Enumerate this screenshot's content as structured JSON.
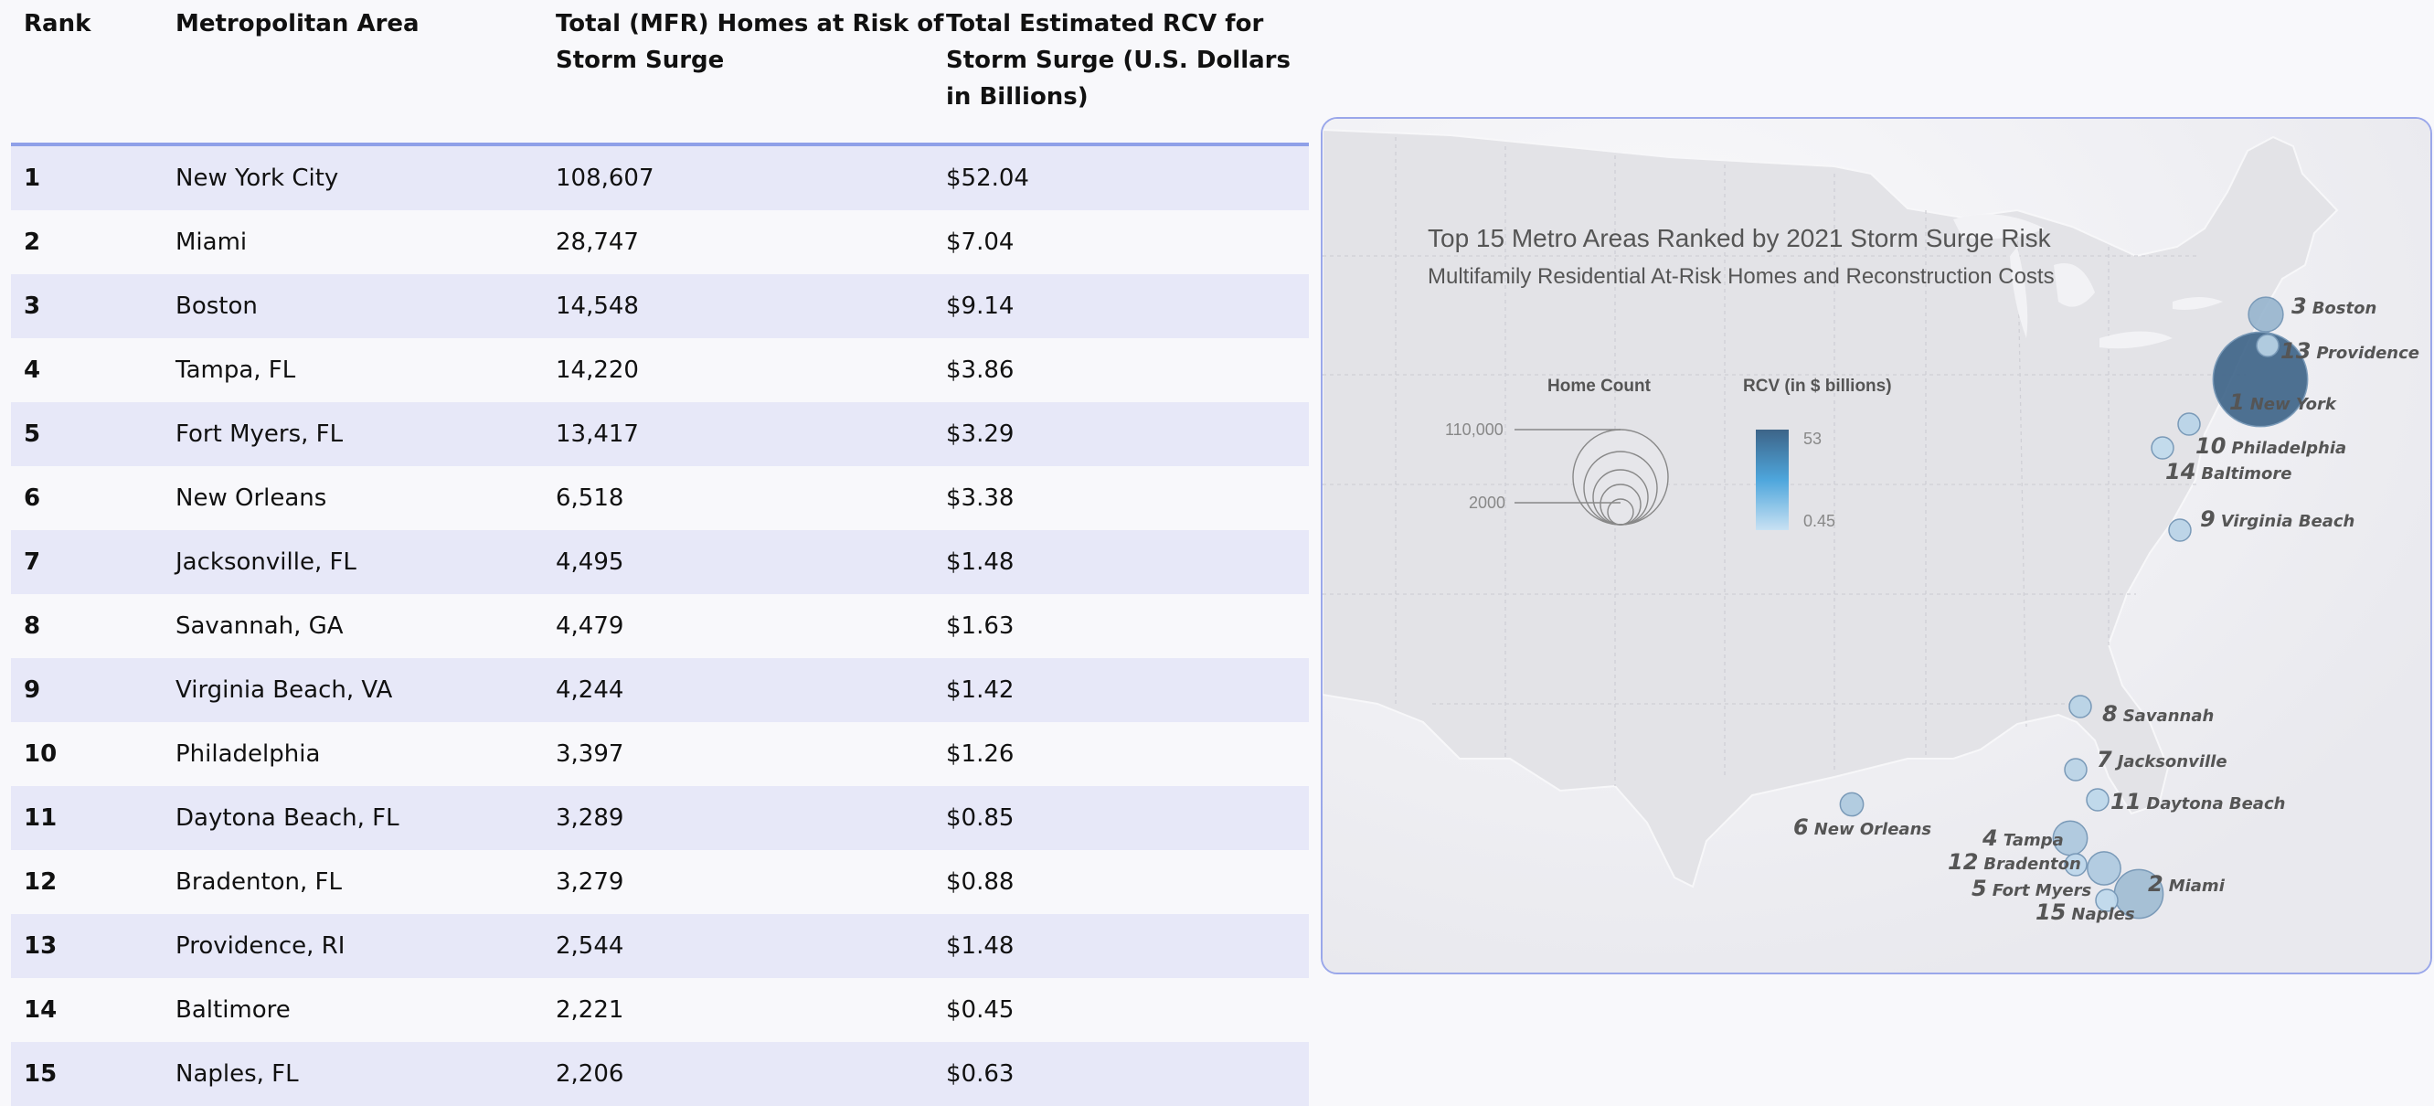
{
  "table": {
    "headers": [
      "Rank",
      "Metropolitan Area",
      "Total (MFR) Homes at Risk of Storm Surge",
      "Total Estimated RCV for Storm Surge (U.S. Dollars in Billions)"
    ],
    "rows": [
      [
        "1",
        "New York City",
        "108,607",
        "$52.04"
      ],
      [
        "2",
        "Miami",
        "28,747",
        "$7.04"
      ],
      [
        "3",
        "Boston",
        "14,548",
        "$9.14"
      ],
      [
        "4",
        "Tampa, FL",
        "14,220",
        "$3.86"
      ],
      [
        "5",
        "Fort Myers, FL",
        "13,417",
        "$3.29"
      ],
      [
        "6",
        "New Orleans",
        "6,518",
        "$3.38"
      ],
      [
        "7",
        "Jacksonville, FL",
        "4,495",
        "$1.48"
      ],
      [
        "8",
        "Savannah, GA",
        "4,479",
        "$1.63"
      ],
      [
        "9",
        "Virginia Beach, VA",
        "4,244",
        "$1.42"
      ],
      [
        "10",
        "Philadelphia",
        "3,397",
        "$1.26"
      ],
      [
        "11",
        "Daytona Beach, FL",
        "3,289",
        "$0.85"
      ],
      [
        "12",
        "Bradenton, FL",
        "3,279",
        "$0.88"
      ],
      [
        "13",
        "Providence, RI",
        "2,544",
        "$1.48"
      ],
      [
        "14",
        "Baltimore",
        "2,221",
        "$0.45"
      ],
      [
        "15",
        "Naples, FL",
        "2,206",
        "$0.63"
      ]
    ]
  },
  "map": {
    "title": "Top 15 Metro Areas Ranked by 2021 Storm Surge Risk",
    "subtitle": "Multifamily Residential At-Risk Homes and Reconstruction Costs",
    "legend": {
      "home_count_label": "Home Count",
      "home_count_max": "110,000",
      "home_count_min": "2000",
      "rcv_label": "RCV (in $ billions)",
      "rcv_max": "53",
      "rcv_min": "0.45"
    },
    "colors": {
      "high": "#3d6488",
      "low": "#c8e1f3",
      "border": "#9aa7ea"
    },
    "markers": [
      {
        "rank": "1",
        "name": "New York",
        "homes": 108607,
        "rcv": 52.04
      },
      {
        "rank": "2",
        "name": "Miami",
        "homes": 28747,
        "rcv": 7.04
      },
      {
        "rank": "3",
        "name": "Boston",
        "homes": 14548,
        "rcv": 9.14
      },
      {
        "rank": "4",
        "name": "Tampa",
        "homes": 14220,
        "rcv": 3.86
      },
      {
        "rank": "5",
        "name": "Fort Myers",
        "homes": 13417,
        "rcv": 3.29
      },
      {
        "rank": "6",
        "name": "New Orleans",
        "homes": 6518,
        "rcv": 3.38
      },
      {
        "rank": "7",
        "name": "Jacksonville",
        "homes": 4495,
        "rcv": 1.48
      },
      {
        "rank": "8",
        "name": "Savannah",
        "homes": 4479,
        "rcv": 1.63
      },
      {
        "rank": "9",
        "name": "Virginia Beach",
        "homes": 4244,
        "rcv": 1.42
      },
      {
        "rank": "10",
        "name": "Philadelphia",
        "homes": 3397,
        "rcv": 1.26
      },
      {
        "rank": "11",
        "name": "Daytona Beach",
        "homes": 3289,
        "rcv": 0.85
      },
      {
        "rank": "12",
        "name": "Bradenton",
        "homes": 3279,
        "rcv": 0.88
      },
      {
        "rank": "13",
        "name": "Providence",
        "homes": 2544,
        "rcv": 1.48
      },
      {
        "rank": "14",
        "name": "Baltimore",
        "homes": 2221,
        "rcv": 0.45
      },
      {
        "rank": "15",
        "name": "Naples",
        "homes": 2206,
        "rcv": 0.63
      }
    ]
  }
}
